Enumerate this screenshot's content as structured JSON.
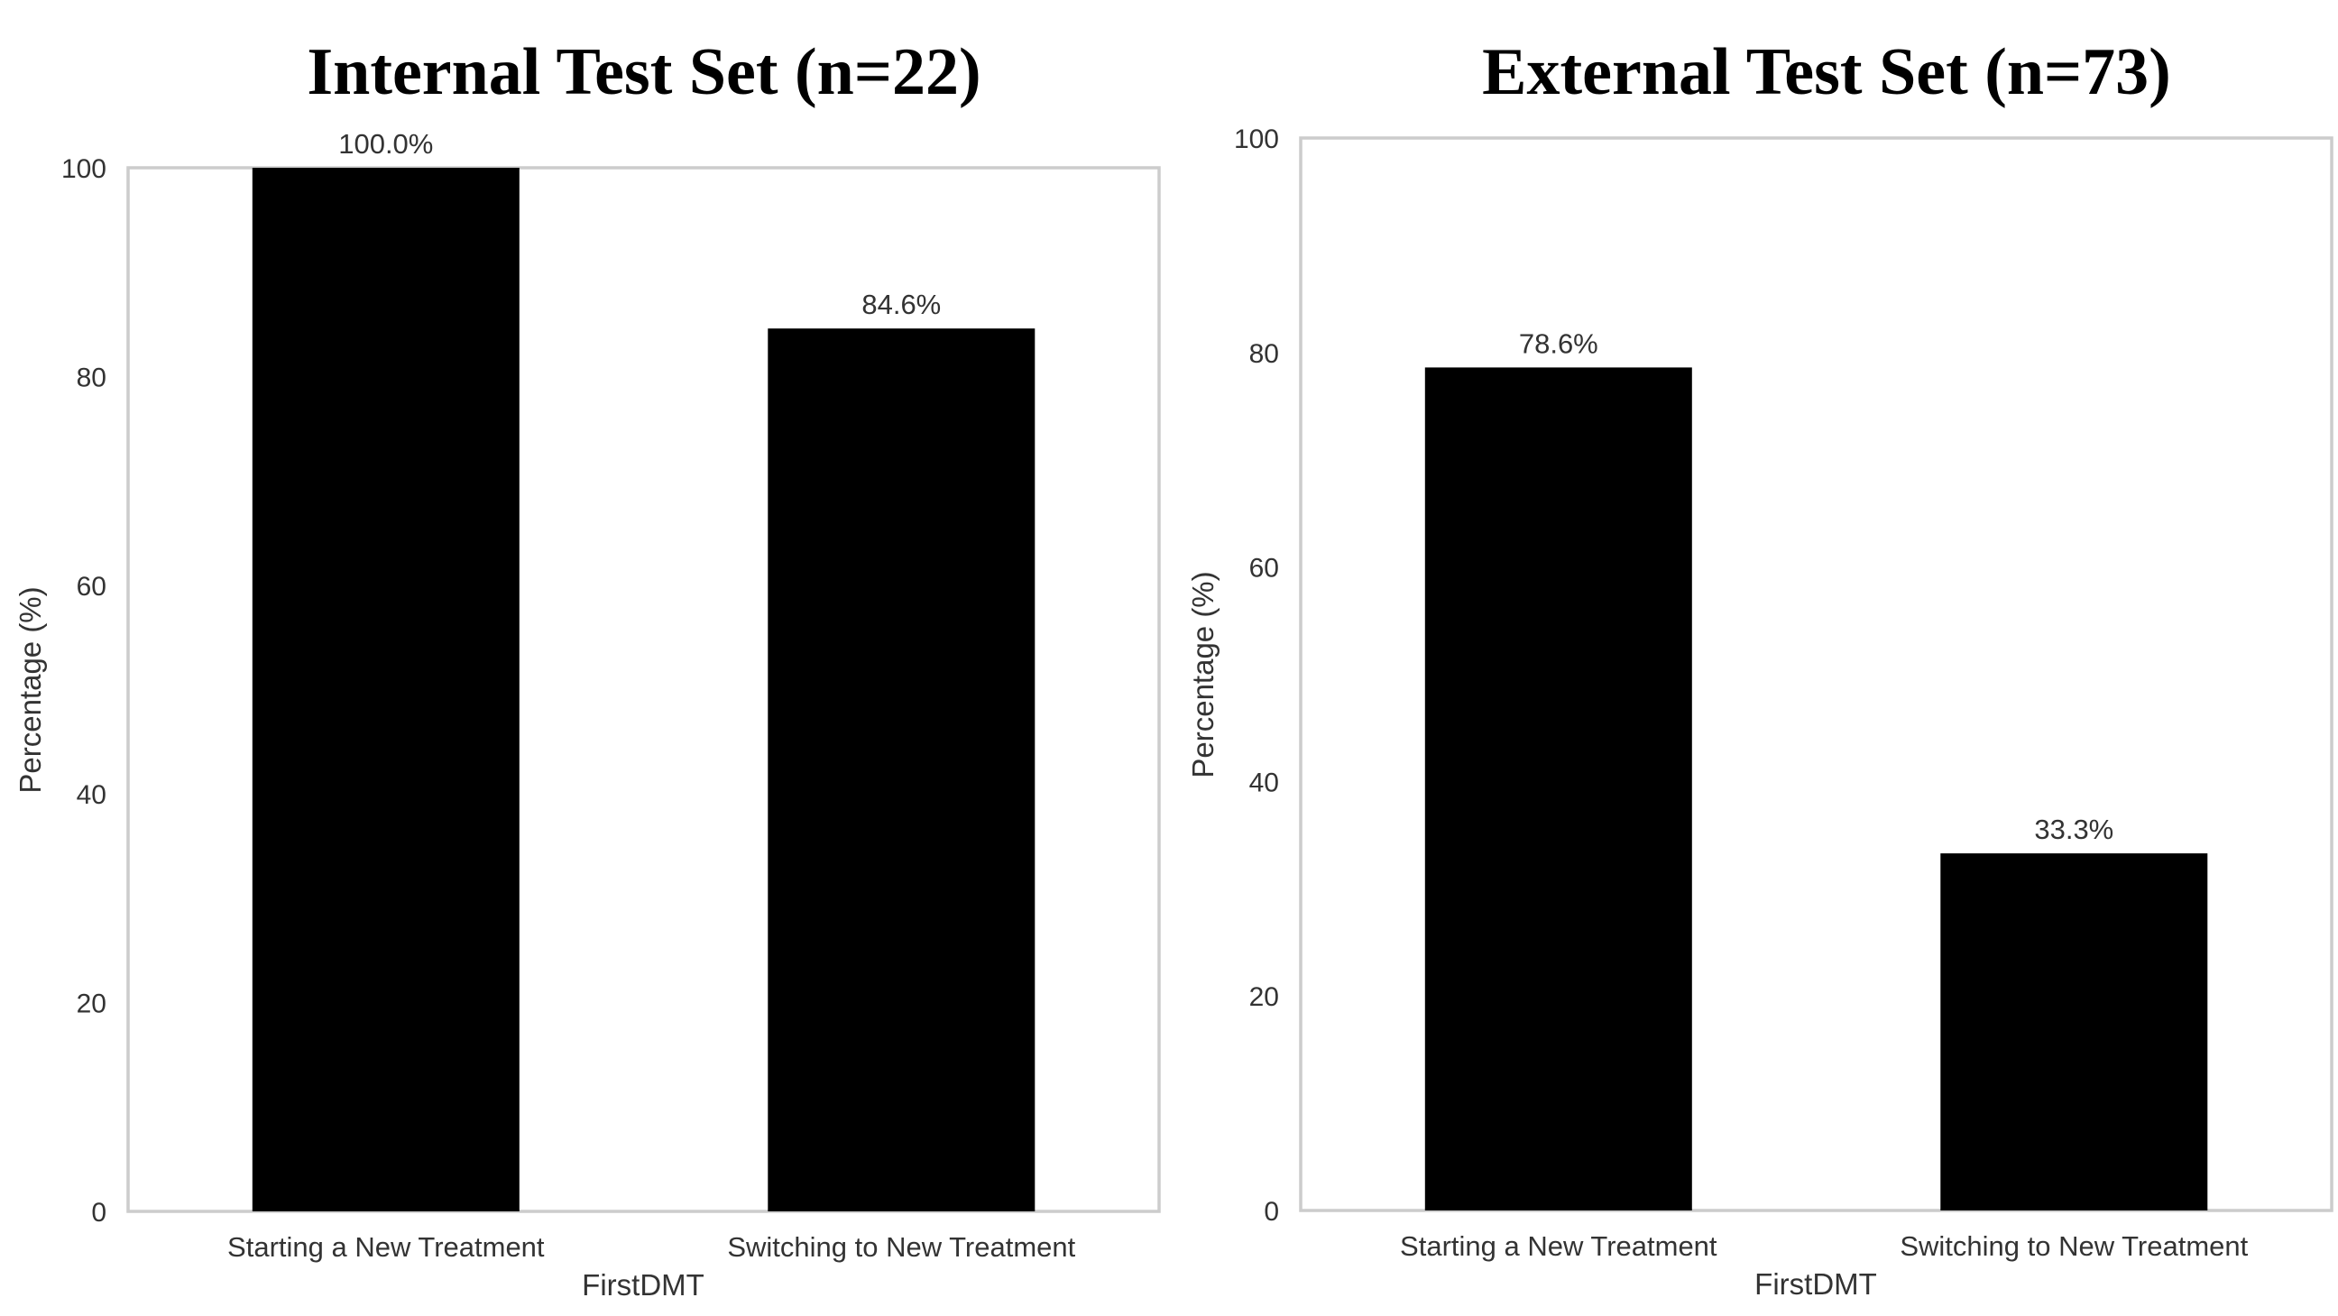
{
  "chart_data": [
    {
      "type": "bar",
      "title": "Internal Test Set (n=22)",
      "xlabel": "FirstDMT",
      "ylabel": "Percentage (%)",
      "categories": [
        "Starting a New Treatment",
        "Switching to New Treatment"
      ],
      "values": [
        100.0,
        84.6
      ],
      "data_labels": [
        "100.0%",
        "84.6%"
      ],
      "ylim": [
        0,
        100
      ],
      "yticks": [
        0,
        20,
        40,
        60,
        80,
        100
      ],
      "grid": false,
      "bar_color": "#000000"
    },
    {
      "type": "bar",
      "title": "External Test Set (n=73)",
      "xlabel": "FirstDMT",
      "ylabel": "Percentage (%)",
      "categories": [
        "Starting a New Treatment",
        "Switching to New Treatment"
      ],
      "values": [
        78.6,
        33.3
      ],
      "data_labels": [
        "78.6%",
        "33.3%"
      ],
      "ylim": [
        0,
        100
      ],
      "yticks": [
        0,
        20,
        40,
        60,
        80,
        100
      ],
      "grid": false,
      "bar_color": "#000000"
    }
  ]
}
